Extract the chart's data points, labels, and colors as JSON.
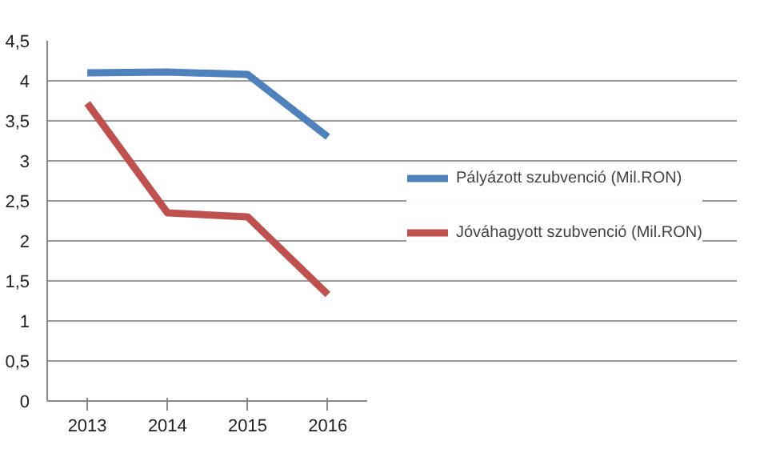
{
  "chart_data": {
    "type": "line",
    "categories": [
      "2013",
      "2014",
      "2015",
      "2016"
    ],
    "series": [
      {
        "name": "Pályázott szubvenció (Mil.RON)",
        "color": "#4f81bd",
        "values": [
          4.1,
          4.11,
          4.08,
          3.3
        ]
      },
      {
        "name": "Jóváhagyott szubvenció (Mil.RON)",
        "color": "#c0504d",
        "values": [
          3.72,
          2.35,
          2.3,
          1.33
        ]
      }
    ],
    "ylim": [
      0,
      4.5
    ],
    "yticks": [
      0,
      {
        "value": 0.5,
        "label": "0,5"
      },
      1,
      {
        "value": 1.5,
        "label": "1,5"
      },
      2,
      {
        "value": 2.5,
        "label": "2,5"
      },
      3,
      {
        "value": 3.5,
        "label": "3,5"
      },
      4,
      {
        "value": 4.5,
        "label": "4,5"
      }
    ],
    "grid": "y",
    "legend": "right",
    "marker": "none",
    "line_style": "solid"
  }
}
